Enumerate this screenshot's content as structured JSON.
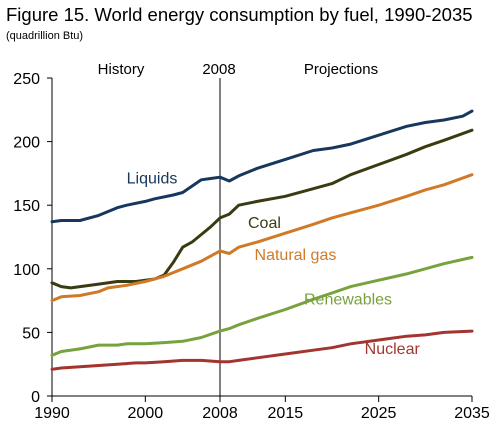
{
  "title": "Figure 15. World energy consumption by fuel, 1990-2035",
  "subtitle": "(quadrillion Btu)",
  "chart_data": {
    "type": "line",
    "title": "Figure 15. World energy consumption by fuel, 1990-2035",
    "subtitle": "(quadrillion Btu)",
    "xlabel": "",
    "ylabel": "",
    "xlim": [
      1990,
      2035
    ],
    "ylim": [
      0,
      250
    ],
    "x_ticks": [
      1990,
      2000,
      2008,
      2015,
      2025,
      2035
    ],
    "y_ticks": [
      0,
      50,
      100,
      150,
      200,
      250
    ],
    "grid": false,
    "annotations": {
      "history": "History",
      "divider": "2008",
      "projections": "Projections",
      "divider_year": 2008
    },
    "series": [
      {
        "name": "Liquids",
        "color": "#17375e",
        "label_year": 1998,
        "label_value": 167,
        "points": [
          [
            1990,
            137
          ],
          [
            1991,
            138
          ],
          [
            1993,
            138
          ],
          [
            1995,
            142
          ],
          [
            1997,
            148
          ],
          [
            1998,
            150
          ],
          [
            2000,
            153
          ],
          [
            2001,
            155
          ],
          [
            2003,
            158
          ],
          [
            2004,
            160
          ],
          [
            2005,
            165
          ],
          [
            2006,
            170
          ],
          [
            2007,
            171
          ],
          [
            2008,
            172
          ],
          [
            2009,
            169
          ],
          [
            2010,
            173
          ],
          [
            2012,
            179
          ],
          [
            2015,
            186
          ],
          [
            2018,
            193
          ],
          [
            2020,
            195
          ],
          [
            2022,
            198
          ],
          [
            2025,
            205
          ],
          [
            2028,
            212
          ],
          [
            2030,
            215
          ],
          [
            2032,
            217
          ],
          [
            2034,
            220
          ],
          [
            2035,
            224
          ]
        ]
      },
      {
        "name": "Coal",
        "color": "#3b3b12",
        "label_year": 2011,
        "label_value": 132,
        "points": [
          [
            1990,
            89
          ],
          [
            1991,
            86
          ],
          [
            1992,
            85
          ],
          [
            1995,
            88
          ],
          [
            1997,
            90
          ],
          [
            1998,
            90
          ],
          [
            1999,
            90
          ],
          [
            2000,
            91
          ],
          [
            2001,
            92
          ],
          [
            2002,
            95
          ],
          [
            2003,
            105
          ],
          [
            2004,
            117
          ],
          [
            2005,
            121
          ],
          [
            2006,
            127
          ],
          [
            2007,
            133
          ],
          [
            2008,
            140
          ],
          [
            2009,
            143
          ],
          [
            2010,
            150
          ],
          [
            2012,
            153
          ],
          [
            2015,
            157
          ],
          [
            2018,
            163
          ],
          [
            2020,
            167
          ],
          [
            2022,
            174
          ],
          [
            2025,
            182
          ],
          [
            2028,
            190
          ],
          [
            2030,
            196
          ],
          [
            2032,
            201
          ],
          [
            2035,
            209
          ]
        ]
      },
      {
        "name": "Natural gas",
        "color": "#d07a28",
        "label_year": 2011.7,
        "label_value": 107,
        "points": [
          [
            1990,
            75
          ],
          [
            1991,
            78
          ],
          [
            1993,
            79
          ],
          [
            1995,
            82
          ],
          [
            1996,
            85
          ],
          [
            1998,
            87
          ],
          [
            2000,
            90
          ],
          [
            2002,
            94
          ],
          [
            2004,
            100
          ],
          [
            2006,
            106
          ],
          [
            2008,
            114
          ],
          [
            2009,
            112
          ],
          [
            2010,
            117
          ],
          [
            2012,
            121
          ],
          [
            2015,
            128
          ],
          [
            2018,
            135
          ],
          [
            2020,
            140
          ],
          [
            2022,
            144
          ],
          [
            2025,
            150
          ],
          [
            2028,
            157
          ],
          [
            2030,
            162
          ],
          [
            2032,
            166
          ],
          [
            2035,
            174
          ]
        ]
      },
      {
        "name": "Renewables",
        "color": "#77a23d",
        "label_year": 2017,
        "label_value": 72,
        "points": [
          [
            1990,
            32
          ],
          [
            1991,
            35
          ],
          [
            1993,
            37
          ],
          [
            1995,
            40
          ],
          [
            1997,
            40
          ],
          [
            1998,
            41
          ],
          [
            2000,
            41
          ],
          [
            2002,
            42
          ],
          [
            2004,
            43
          ],
          [
            2006,
            46
          ],
          [
            2008,
            51
          ],
          [
            2009,
            53
          ],
          [
            2010,
            56
          ],
          [
            2012,
            61
          ],
          [
            2015,
            68
          ],
          [
            2018,
            76
          ],
          [
            2020,
            81
          ],
          [
            2022,
            86
          ],
          [
            2025,
            91
          ],
          [
            2028,
            96
          ],
          [
            2030,
            100
          ],
          [
            2032,
            104
          ],
          [
            2035,
            109
          ]
        ]
      },
      {
        "name": "Nuclear",
        "color": "#a33530",
        "label_year": 2023.5,
        "label_value": 33,
        "points": [
          [
            1990,
            21
          ],
          [
            1991,
            22
          ],
          [
            1993,
            23
          ],
          [
            1995,
            24
          ],
          [
            1997,
            25
          ],
          [
            1999,
            26
          ],
          [
            2000,
            26
          ],
          [
            2002,
            27
          ],
          [
            2004,
            28
          ],
          [
            2006,
            28
          ],
          [
            2008,
            27
          ],
          [
            2009,
            27
          ],
          [
            2010,
            28
          ],
          [
            2012,
            30
          ],
          [
            2015,
            33
          ],
          [
            2018,
            36
          ],
          [
            2020,
            38
          ],
          [
            2022,
            41
          ],
          [
            2025,
            44
          ],
          [
            2028,
            47
          ],
          [
            2030,
            48
          ],
          [
            2032,
            50
          ],
          [
            2035,
            51
          ]
        ]
      }
    ]
  }
}
